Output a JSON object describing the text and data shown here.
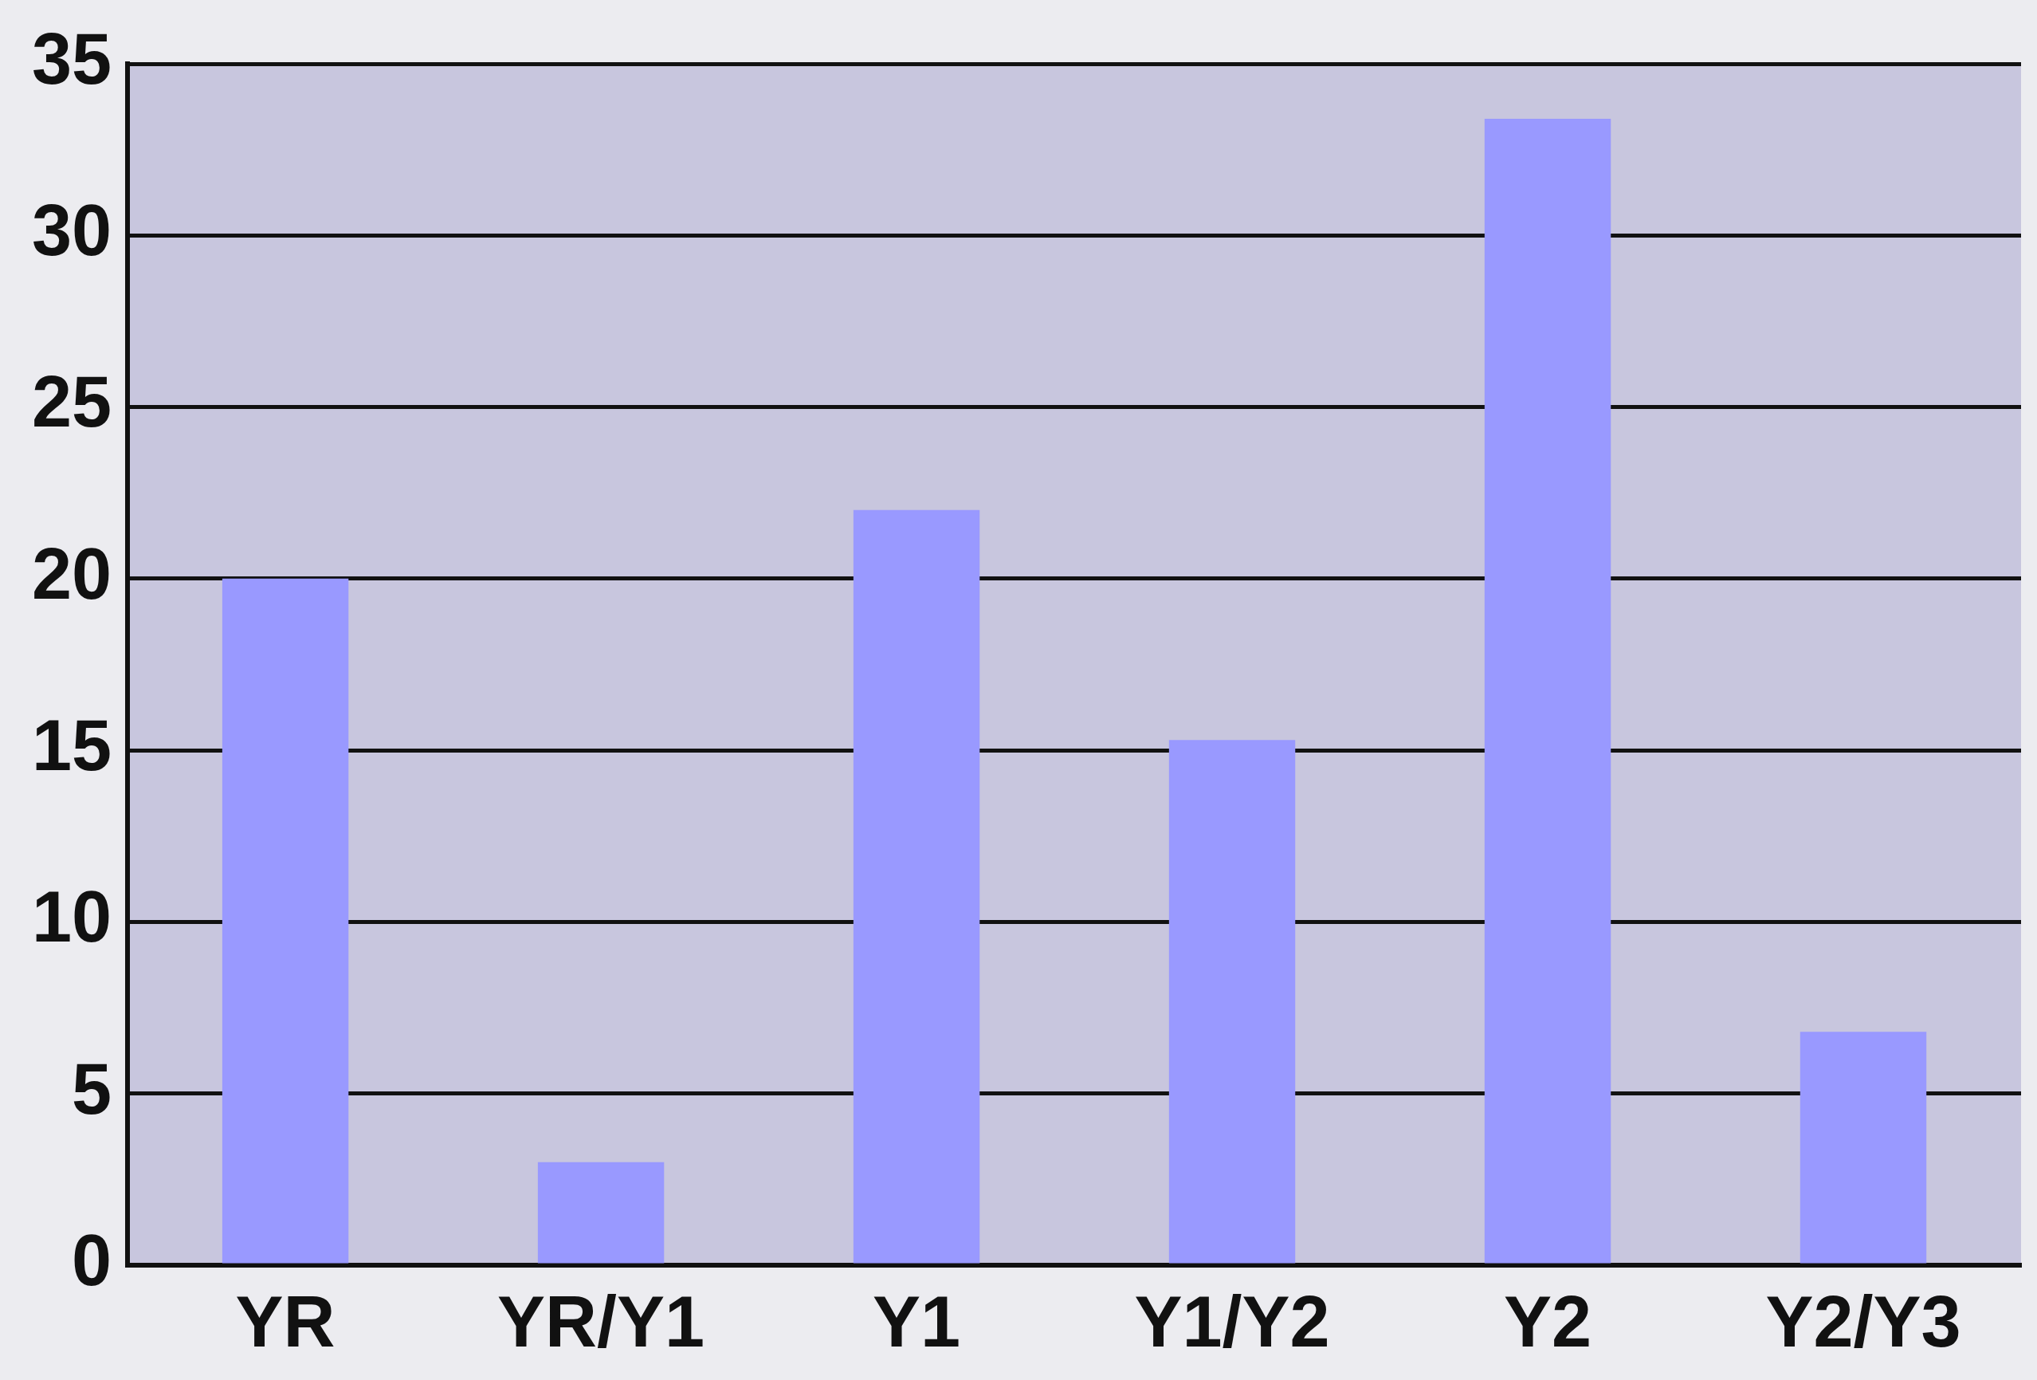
{
  "chart_data": {
    "type": "bar",
    "categories": [
      "YR",
      "YR/Y1",
      "Y1",
      "Y1/Y2",
      "Y2",
      "Y2/Y3"
    ],
    "values": [
      20,
      3,
      22,
      15.3,
      33.4,
      6.8
    ],
    "color": "#9999ff",
    "ylim": [
      0,
      35
    ],
    "yticks": [
      0,
      5,
      10,
      15,
      20,
      25,
      30,
      35
    ],
    "grid": "y"
  }
}
